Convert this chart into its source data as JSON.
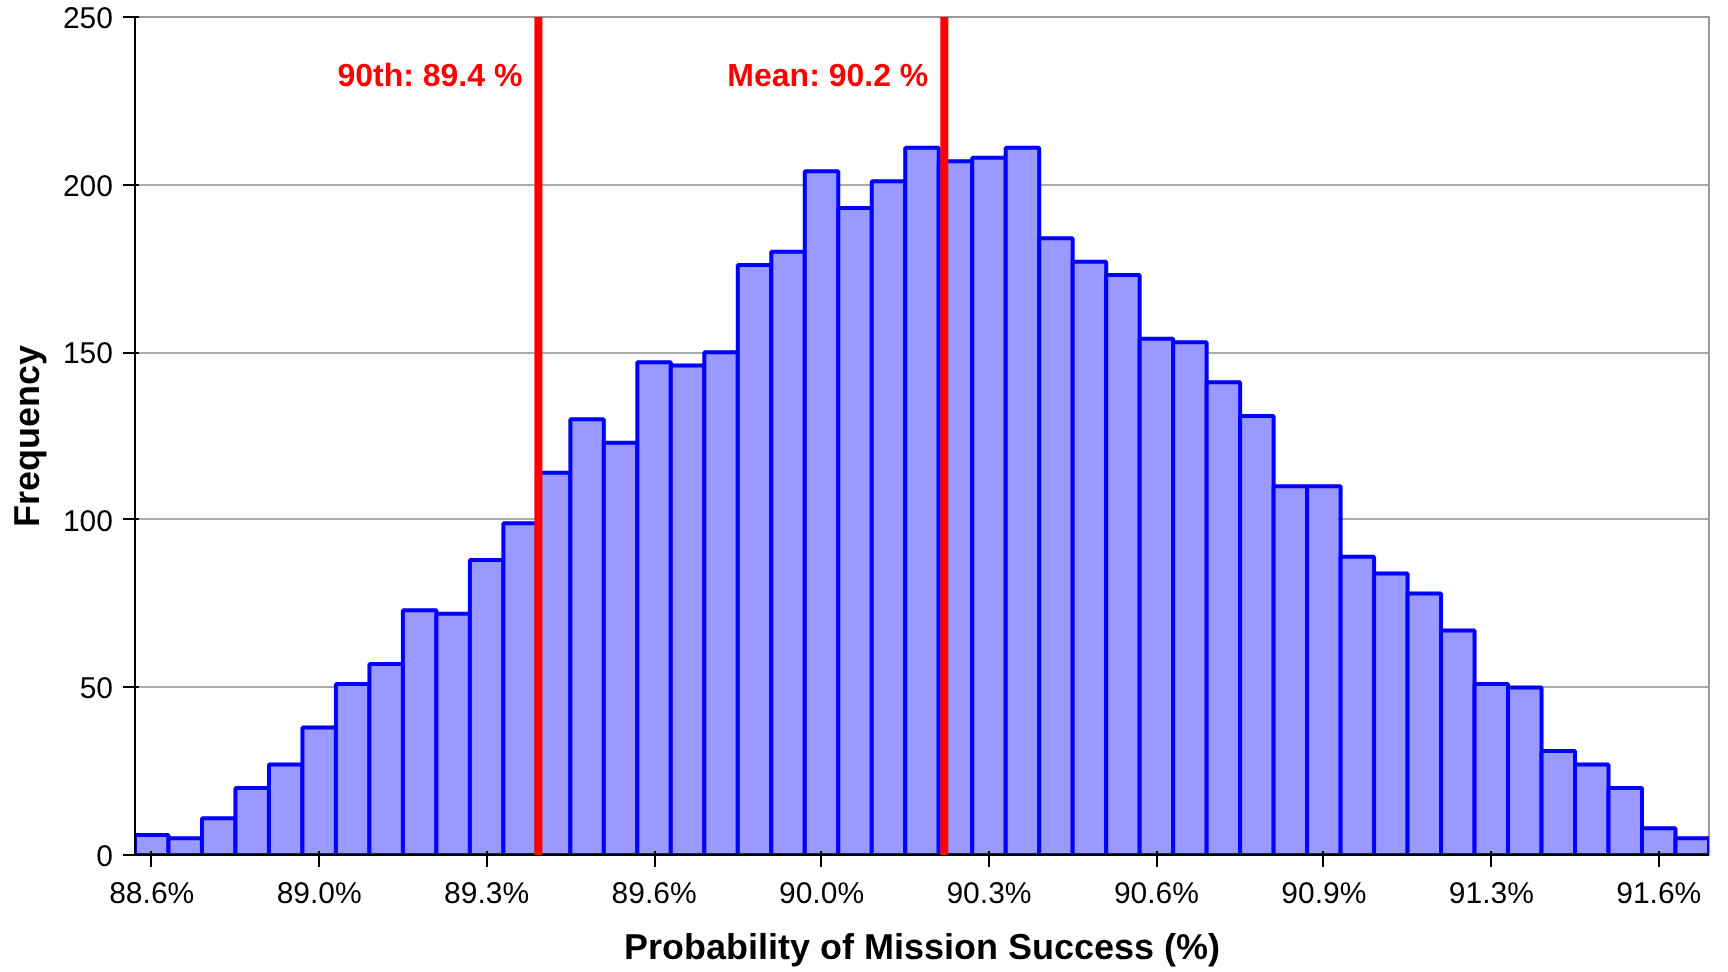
{
  "chart_data": {
    "type": "histogram",
    "xlabel": "Probability of Mission Success (%)",
    "ylabel": "Frequency",
    "bins": [
      88.605,
      88.671,
      88.737,
      88.803,
      88.869,
      88.935,
      89.001,
      89.067,
      89.133,
      89.199,
      89.265,
      89.331,
      89.397,
      89.463,
      89.529,
      89.595,
      89.661,
      89.727,
      89.793,
      89.859,
      89.925,
      89.991,
      90.057,
      90.123,
      90.189,
      90.255,
      90.321,
      90.387,
      90.453,
      90.519,
      90.585,
      90.651,
      90.717,
      90.783,
      90.849,
      90.915,
      90.981,
      91.047,
      91.113,
      91.179,
      91.245,
      91.311,
      91.377,
      91.443,
      91.509,
      91.575,
      91.641,
      91.707
    ],
    "values": [
      6,
      5,
      11,
      20,
      27,
      38,
      51,
      57,
      73,
      72,
      88,
      99,
      114,
      130,
      123,
      147,
      146,
      150,
      176,
      180,
      204,
      193,
      201,
      211,
      207,
      208,
      211,
      184,
      177,
      173,
      154,
      153,
      141,
      131,
      110,
      110,
      89,
      84,
      78,
      67,
      51,
      50,
      31,
      27,
      20,
      8,
      5
    ],
    "color": "#9999ff",
    "xlim": [
      88.605,
      91.707
    ],
    "xticks": [
      {
        "value": 88.638,
        "label": "88.6%"
      },
      {
        "value": 88.968,
        "label": "89.0%"
      },
      {
        "value": 89.298,
        "label": "89.3%"
      },
      {
        "value": 89.628,
        "label": "89.6%"
      },
      {
        "value": 89.958,
        "label": "90.0%"
      },
      {
        "value": 90.288,
        "label": "90.3%"
      },
      {
        "value": 90.618,
        "label": "90.6%"
      },
      {
        "value": 90.948,
        "label": "90.9%"
      },
      {
        "value": 91.278,
        "label": "91.3%"
      },
      {
        "value": 91.608,
        "label": "91.6%"
      }
    ],
    "ylim": [
      0,
      250
    ],
    "yticks": [
      0,
      50,
      100,
      150,
      200,
      250
    ],
    "grid": "y",
    "ref_lines": [
      {
        "axis": "x",
        "value": 89.4,
        "label": "90th: 89.4 %",
        "color": "#ff0000"
      },
      {
        "axis": "x",
        "value": 90.2,
        "label": "Mean: 90.2 %",
        "color": "#ff0000"
      }
    ]
  }
}
